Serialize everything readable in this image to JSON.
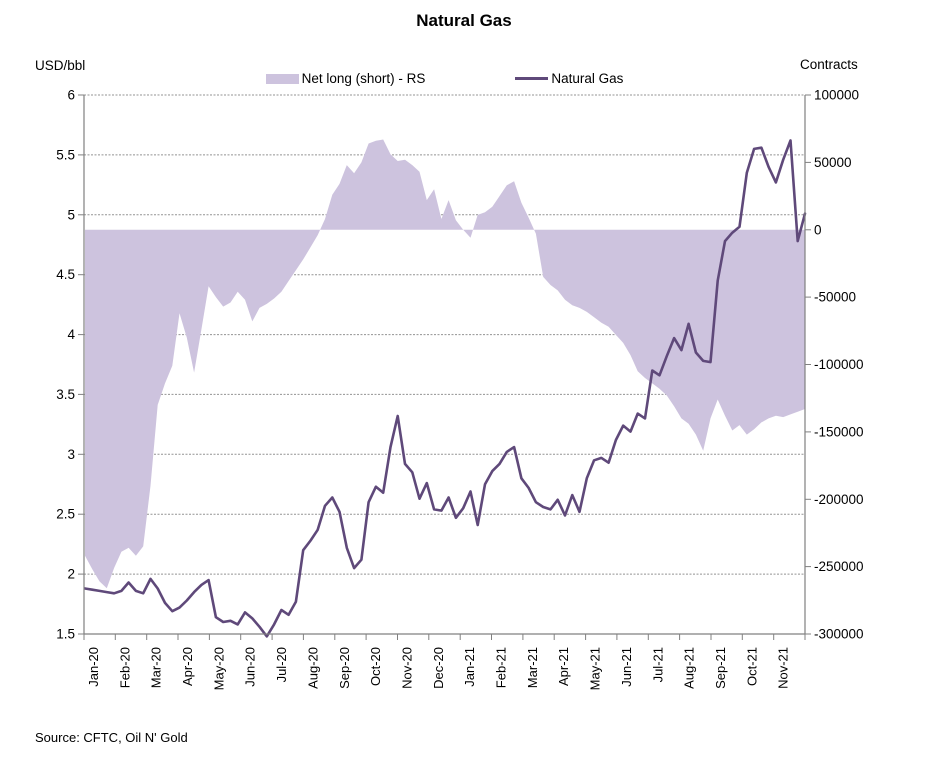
{
  "title": "Natural Gas",
  "left_axis_unit": "USD/bbl",
  "right_axis_unit": "Contracts",
  "source": "Source: CFTC, Oil N' Gold",
  "legend": [
    {
      "label": "Net long (short) - RS",
      "type": "area",
      "color": "#CDC3DE"
    },
    {
      "label": "Natural Gas",
      "type": "line",
      "color": "#5F497A"
    }
  ],
  "chart_data": {
    "type": "combo",
    "title": "Natural Gas",
    "grid": true,
    "legend_position": "top-center",
    "x_tick_labels": [
      "Jan-20",
      "Feb-20",
      "Mar-20",
      "Apr-20",
      "May-20",
      "Jun-20",
      "Jul-20",
      "Aug-20",
      "Sep-20",
      "Oct-20",
      "Nov-20",
      "Dec-20",
      "Jan-21",
      "Feb-21",
      "Mar-21",
      "Apr-21",
      "May-21",
      "Jun-21",
      "Jul-21",
      "Aug-21",
      "Sep-21",
      "Oct-21",
      "Nov-21"
    ],
    "left_axis": {
      "label": "USD/bbl",
      "min": 1.5,
      "max": 6,
      "step": 0.5,
      "ticks": [
        "6",
        "5.5",
        "5",
        "4.5",
        "4",
        "3.5",
        "3",
        "2.5",
        "2",
        "1.5"
      ]
    },
    "right_axis": {
      "label": "Contracts",
      "min": -300000,
      "max": 100000,
      "step": 50000,
      "ticks": [
        "100000",
        "50000",
        "0",
        "-50000",
        "-100000",
        "-150000",
        "-200000",
        "-250000",
        "-300000"
      ]
    },
    "series": [
      {
        "name": "Net long (short) - RS",
        "type": "area",
        "axis": "right",
        "color": "#CDC3DE",
        "values": [
          -242000,
          -252000,
          -261000,
          -266000,
          -251000,
          -239000,
          -236000,
          -242000,
          -235000,
          -190000,
          -130000,
          -114000,
          -101000,
          -62000,
          -80000,
          -106000,
          -74000,
          -42000,
          -50000,
          -57000,
          -54000,
          -46000,
          -52000,
          -68000,
          -58000,
          -55000,
          -51000,
          -46000,
          -38000,
          -30000,
          -22000,
          -13000,
          -4000,
          8000,
          26000,
          34000,
          48000,
          42000,
          50000,
          64000,
          66000,
          67000,
          56000,
          51000,
          52000,
          48000,
          43000,
          22000,
          30000,
          8000,
          22000,
          7000,
          0,
          -6000,
          11000,
          13000,
          17000,
          25000,
          33000,
          36000,
          20000,
          9000,
          -3000,
          -35000,
          -41000,
          -45000,
          -52000,
          -56000,
          -58000,
          -61000,
          -65000,
          -69000,
          -72000,
          -78000,
          -84000,
          -93000,
          -105000,
          -110000,
          -114000,
          -118000,
          -123000,
          -131000,
          -140000,
          -144000,
          -152000,
          -164000,
          -140000,
          -126000,
          -138000,
          -149000,
          -145000,
          -152000,
          -148000,
          -143000,
          -140000,
          -138000,
          -139000,
          -137000,
          -135000,
          -133000
        ]
      },
      {
        "name": "Natural Gas",
        "type": "line",
        "axis": "left",
        "color": "#5F497A",
        "values": [
          1.88,
          1.87,
          1.86,
          1.85,
          1.84,
          1.86,
          1.93,
          1.86,
          1.84,
          1.96,
          1.88,
          1.76,
          1.69,
          1.72,
          1.78,
          1.85,
          1.91,
          1.95,
          1.64,
          1.6,
          1.61,
          1.58,
          1.68,
          1.63,
          1.56,
          1.48,
          1.58,
          1.7,
          1.66,
          1.77,
          2.2,
          2.28,
          2.37,
          2.57,
          2.64,
          2.52,
          2.22,
          2.05,
          2.12,
          2.6,
          2.73,
          2.68,
          3.06,
          3.32,
          2.92,
          2.85,
          2.63,
          2.76,
          2.54,
          2.53,
          2.64,
          2.47,
          2.55,
          2.69,
          2.41,
          2.75,
          2.86,
          2.92,
          3.02,
          3.06,
          2.8,
          2.72,
          2.6,
          2.56,
          2.54,
          2.62,
          2.49,
          2.66,
          2.52,
          2.8,
          2.95,
          2.97,
          2.93,
          3.12,
          3.24,
          3.19,
          3.34,
          3.3,
          3.7,
          3.66,
          3.82,
          3.97,
          3.87,
          4.09,
          3.85,
          3.78,
          3.77,
          4.45,
          4.78,
          4.85,
          4.9,
          5.35,
          5.55,
          5.56,
          5.4,
          5.27,
          5.46,
          5.62,
          4.78,
          5.01
        ]
      }
    ]
  }
}
